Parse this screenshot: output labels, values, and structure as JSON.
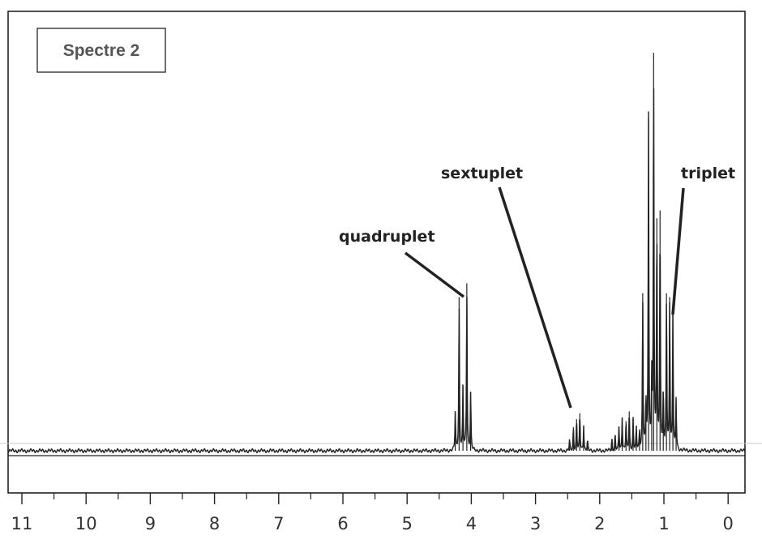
{
  "chart_data": {
    "type": "line",
    "title": "Spectre 2",
    "xlabel": "",
    "ylabel": "",
    "xlim": [
      11,
      -0.3
    ],
    "x_ticks": [
      11,
      10,
      9,
      8,
      7,
      6,
      5,
      4,
      3,
      2,
      1,
      0
    ],
    "x_reversed": true,
    "grid": false,
    "colors": {
      "line": "#222222",
      "frame": "#222222",
      "ref_line": "#c8c8c8"
    },
    "series": [
      {
        "peaks": [
          {
            "x": 4.25,
            "y": 0.2
          },
          {
            "x": 4.19,
            "y": 0.78
          },
          {
            "x": 4.13,
            "y": 0.33
          },
          {
            "x": 4.07,
            "y": 0.85
          },
          {
            "x": 4.01,
            "y": 0.3
          },
          {
            "x": 2.47,
            "y": 0.05
          },
          {
            "x": 2.41,
            "y": 0.12
          },
          {
            "x": 2.36,
            "y": 0.16
          },
          {
            "x": 2.31,
            "y": 0.19
          },
          {
            "x": 2.25,
            "y": 0.13
          },
          {
            "x": 2.19,
            "y": 0.05
          },
          {
            "x": 1.81,
            "y": 0.06
          },
          {
            "x": 1.76,
            "y": 0.08
          },
          {
            "x": 1.7,
            "y": 0.12
          },
          {
            "x": 1.65,
            "y": 0.17
          },
          {
            "x": 1.59,
            "y": 0.15
          },
          {
            "x": 1.54,
            "y": 0.2
          },
          {
            "x": 1.48,
            "y": 0.16
          },
          {
            "x": 1.43,
            "y": 0.11
          },
          {
            "x": 1.38,
            "y": 0.09
          },
          {
            "x": 1.33,
            "y": 0.8
          },
          {
            "x": 1.28,
            "y": 0.25
          },
          {
            "x": 1.24,
            "y": 1.69
          },
          {
            "x": 1.19,
            "y": 0.35
          },
          {
            "x": 1.16,
            "y": 2.02
          },
          {
            "x": 1.11,
            "y": 1.18
          },
          {
            "x": 1.06,
            "y": 1.22
          },
          {
            "x": 1.01,
            "y": 0.3
          },
          {
            "x": 0.96,
            "y": 0.8
          },
          {
            "x": 0.91,
            "y": 0.78
          },
          {
            "x": 0.86,
            "y": 0.72
          },
          {
            "x": 0.81,
            "y": 0.26
          }
        ]
      }
    ],
    "annotations": [
      {
        "text": "quadruplet"
      },
      {
        "text": "sextuplet"
      },
      {
        "text": "triplet"
      }
    ]
  }
}
